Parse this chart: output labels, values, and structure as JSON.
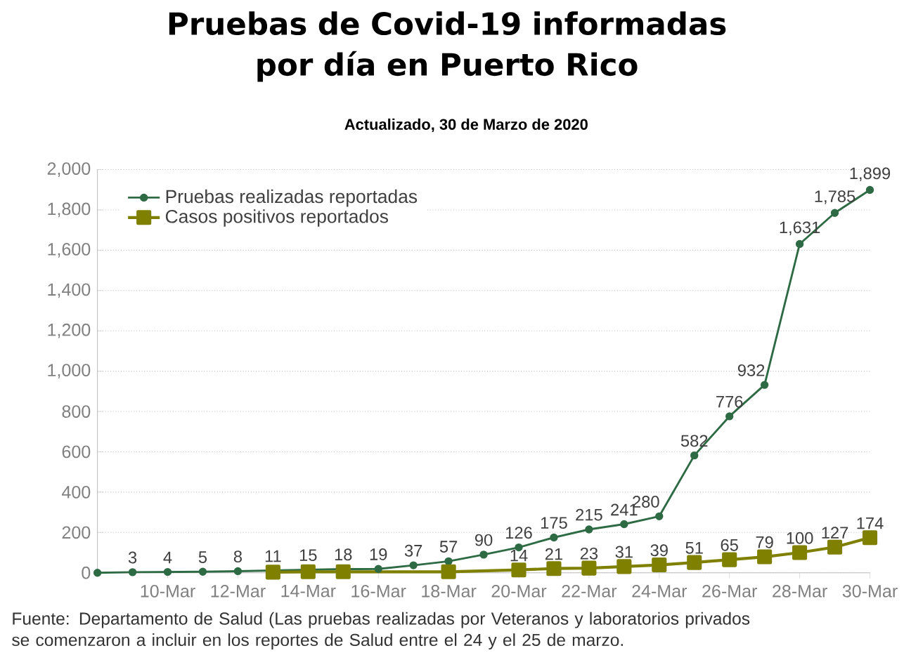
{
  "chart_data": {
    "type": "line",
    "title": "Pruebas de Covid-19  informadas por día en Puerto Rico",
    "subtitle": "Actualizado, 30 de Marzo de 2020",
    "annotations": [
      "Fuente: Departamento de Salud (Las pruebas realizadas por Veteranos y laboratorios privados se comenzaron a incluir en los reportes de Salud entre el 24 y el 25 de marzo."
    ],
    "series": [
      {
        "name": "Pruebas realizadas reportadas",
        "color": "#2e6b45",
        "marker": "circle",
        "x": [
          "2020-03-08",
          "2020-03-09",
          "2020-03-10",
          "2020-03-11",
          "2020-03-12",
          "2020-03-13",
          "2020-03-14",
          "2020-03-15",
          "2020-03-16",
          "2020-03-17",
          "2020-03-18",
          "2020-03-19",
          "2020-03-20",
          "2020-03-21",
          "2020-03-22",
          "2020-03-23",
          "2020-03-24",
          "2020-03-25",
          "2020-03-26",
          "2020-03-27",
          "2020-03-28",
          "2020-03-29",
          "2020-03-30"
        ],
        "values": [
          0,
          3,
          4,
          5,
          8,
          11,
          15,
          18,
          19,
          37,
          57,
          90,
          126,
          175,
          215,
          241,
          280,
          582,
          776,
          932,
          1631,
          1785,
          1899
        ],
        "value_labels": [
          null,
          "3",
          "4",
          "5",
          "8",
          "11",
          "15",
          "18",
          "19",
          "37",
          "57",
          "90",
          "126",
          "175",
          "215",
          "241",
          "280",
          "582",
          "776",
          "932",
          "1,631",
          "1,785",
          "1,899"
        ]
      },
      {
        "name": "Casos positivos reportados",
        "color": "#7f8000",
        "marker": "square",
        "x": [
          "2020-03-13",
          "2020-03-14",
          "2020-03-15",
          "2020-03-18",
          "2020-03-20",
          "2020-03-21",
          "2020-03-22",
          "2020-03-23",
          "2020-03-24",
          "2020-03-25",
          "2020-03-26",
          "2020-03-27",
          "2020-03-28",
          "2020-03-29",
          "2020-03-30"
        ],
        "values": [
          3,
          5,
          5,
          5,
          14,
          21,
          23,
          31,
          39,
          51,
          65,
          79,
          100,
          127,
          174
        ],
        "value_labels": [
          null,
          null,
          null,
          null,
          "14",
          "21",
          "23",
          "31",
          "39",
          "51",
          "65",
          "79",
          "100",
          "127",
          "174"
        ]
      }
    ],
    "xlim": [
      "2020-03-08",
      "2020-03-30"
    ],
    "xticks": [
      {
        "value": "2020-03-10",
        "label": "10-Mar"
      },
      {
        "value": "2020-03-12",
        "label": "12-Mar"
      },
      {
        "value": "2020-03-14",
        "label": "14-Mar"
      },
      {
        "value": "2020-03-16",
        "label": "16-Mar"
      },
      {
        "value": "2020-03-18",
        "label": "18-Mar"
      },
      {
        "value": "2020-03-20",
        "label": "20-Mar"
      },
      {
        "value": "2020-03-22",
        "label": "22-Mar"
      },
      {
        "value": "2020-03-24",
        "label": "24-Mar"
      },
      {
        "value": "2020-03-26",
        "label": "26-Mar"
      },
      {
        "value": "2020-03-28",
        "label": "28-Mar"
      },
      {
        "value": "2020-03-30",
        "label": "30-Mar"
      }
    ],
    "ylim": [
      0,
      2000
    ],
    "yticks": [
      0,
      {
        "value": 200,
        "label": "200"
      },
      {
        "value": 400,
        "label": "400"
      },
      {
        "value": 600,
        "label": "600"
      },
      {
        "value": 800,
        "label": "800"
      },
      {
        "value": 1000,
        "label": "1,000"
      },
      {
        "value": 1200,
        "label": "1,200"
      },
      {
        "value": 1400,
        "label": "1,400"
      },
      {
        "value": 1600,
        "label": "1,600"
      },
      {
        "value": 1800,
        "label": "1,800"
      },
      {
        "value": 2000,
        "label": "2,000"
      }
    ],
    "grid": "y",
    "legend": "top left"
  }
}
